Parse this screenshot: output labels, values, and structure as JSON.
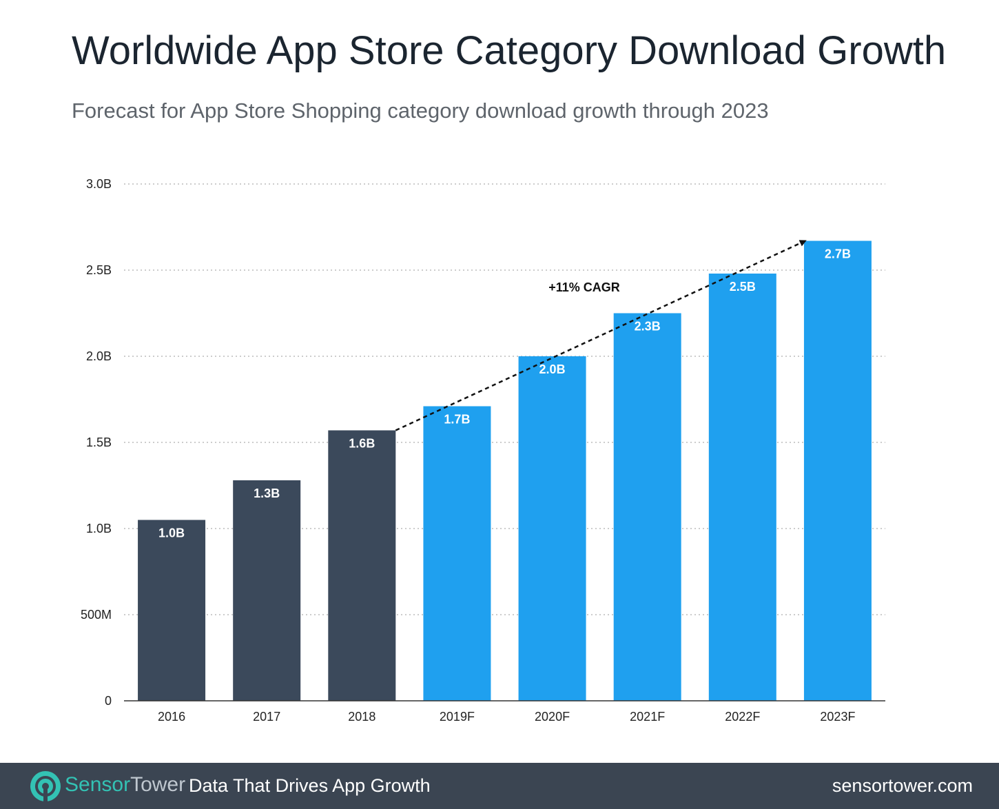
{
  "chart_data": {
    "type": "bar",
    "title": "Worldwide App Store Category Download Growth",
    "subtitle": "Forecast for App Store Shopping category download growth through 2023",
    "xlabel": "",
    "ylabel": "",
    "ylim": [
      0,
      3.0
    ],
    "yticks": [
      {
        "value": 0,
        "label": "0"
      },
      {
        "value": 0.5,
        "label": "500M"
      },
      {
        "value": 1.0,
        "label": "1.0B"
      },
      {
        "value": 1.5,
        "label": "1.5B"
      },
      {
        "value": 2.0,
        "label": "2.0B"
      },
      {
        "value": 2.5,
        "label": "2.5B"
      },
      {
        "value": 3.0,
        "label": "3.0B"
      }
    ],
    "grid": true,
    "categories": [
      "2016",
      "2017",
      "2018",
      "2019F",
      "2020F",
      "2021F",
      "2022F",
      "2023F"
    ],
    "values": [
      1.05,
      1.28,
      1.57,
      1.71,
      2.0,
      2.25,
      2.48,
      2.67
    ],
    "data_labels": [
      "1.0B",
      "1.3B",
      "1.6B",
      "1.7B",
      "2.0B",
      "2.3B",
      "2.5B",
      "2.7B"
    ],
    "series_kind": [
      "actual",
      "actual",
      "actual",
      "forecast",
      "forecast",
      "forecast",
      "forecast",
      "forecast"
    ],
    "colors": {
      "actual": "#3b495b",
      "forecast": "#1fa0ef",
      "grid": "#bcbcbc",
      "axis": "#333333"
    },
    "annotation": {
      "text": "+11% CAGR",
      "from_category": "2018",
      "to_category": "2023F"
    }
  },
  "footer": {
    "brand_part1": "Sensor",
    "brand_part2": "Tower",
    "tagline": "Data That Drives App Growth",
    "site": "sensortower.com"
  }
}
